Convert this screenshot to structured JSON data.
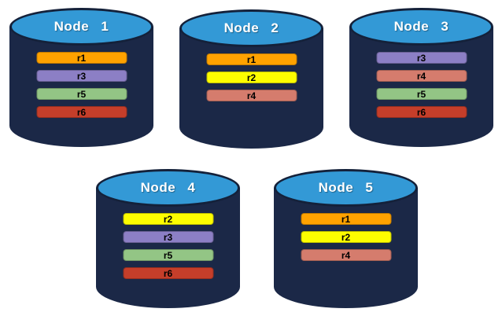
{
  "diagram": {
    "background": "#FFFFFF",
    "palette": {
      "r1": "#FFA200",
      "r2": "#FDFD00",
      "r3": "#8C7FC5",
      "r4": "#D57C6D",
      "r5": "#93C585",
      "r6": "#C53E2A"
    },
    "cylinder_colors": {
      "top": "#3399D6",
      "body": "#1B2847",
      "outline": "#14213A",
      "title_text": "#FFFFFF",
      "replica_text": "#000000"
    },
    "nodes": [
      {
        "id": "node-1",
        "title": "Node 1",
        "replicas": [
          "r1",
          "r3",
          "r5",
          "r6"
        ]
      },
      {
        "id": "node-2",
        "title": "Node 2",
        "replicas": [
          "r1",
          "r2",
          "r4"
        ]
      },
      {
        "id": "node-3",
        "title": "Node 3",
        "replicas": [
          "r3",
          "r4",
          "r5",
          "r6"
        ]
      },
      {
        "id": "node-4",
        "title": "Node 4",
        "replicas": [
          "r2",
          "r3",
          "r5",
          "r6"
        ]
      },
      {
        "id": "node-5",
        "title": "Node 5",
        "replicas": [
          "r1",
          "r2",
          "r4"
        ]
      }
    ]
  }
}
